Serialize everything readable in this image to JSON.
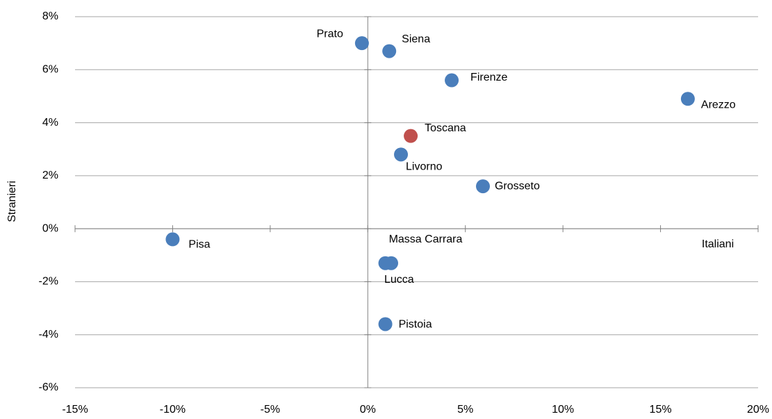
{
  "chart_data": {
    "type": "scatter",
    "x_label": "Italiani",
    "y_label": "Stranieri",
    "xlim": [
      -15,
      20
    ],
    "ylim": [
      -6,
      8
    ],
    "xticks": [
      {
        "value": -15,
        "label": "-15%"
      },
      {
        "value": -10,
        "label": "-10%"
      },
      {
        "value": -5,
        "label": "-5%"
      },
      {
        "value": 0,
        "label": "0%"
      },
      {
        "value": 5,
        "label": "5%"
      },
      {
        "value": 10,
        "label": "10%"
      },
      {
        "value": 15,
        "label": "15%"
      },
      {
        "value": 20,
        "label": "20%"
      }
    ],
    "yticks": [
      {
        "value": -6,
        "label": "-6%"
      },
      {
        "value": -4,
        "label": "-4%"
      },
      {
        "value": -2,
        "label": "-2%"
      },
      {
        "value": 0,
        "label": "0%"
      },
      {
        "value": 2,
        "label": "2%"
      },
      {
        "value": 4,
        "label": "4%"
      },
      {
        "value": 6,
        "label": "6%"
      },
      {
        "value": 8,
        "label": "8%"
      }
    ],
    "grid": true,
    "points": [
      {
        "label": "Prato",
        "x": -0.3,
        "y": 7.0,
        "color": "#4a7ebb"
      },
      {
        "label": "Siena",
        "x": 1.1,
        "y": 6.7,
        "color": "#4a7ebb"
      },
      {
        "label": "Firenze",
        "x": 4.3,
        "y": 5.6,
        "color": "#4a7ebb"
      },
      {
        "label": "Arezzo",
        "x": 16.4,
        "y": 4.9,
        "color": "#4a7ebb"
      },
      {
        "label": "Toscana",
        "x": 2.2,
        "y": 3.5,
        "color": "#c0504d"
      },
      {
        "label": "Livorno",
        "x": 1.7,
        "y": 2.8,
        "color": "#4a7ebb"
      },
      {
        "label": "Grosseto",
        "x": 5.9,
        "y": 1.6,
        "color": "#4a7ebb"
      },
      {
        "label": "Pisa",
        "x": -10.0,
        "y": -0.4,
        "color": "#4a7ebb"
      },
      {
        "label": "Massa Carrara",
        "x": 0.9,
        "y": -1.3,
        "color": "#4a7ebb"
      },
      {
        "label": "Lucca",
        "x": 1.2,
        "y": -1.3,
        "color": "#4a7ebb"
      },
      {
        "label": "Pistoia",
        "x": 0.9,
        "y": -3.6,
        "color": "#4a7ebb"
      }
    ]
  }
}
